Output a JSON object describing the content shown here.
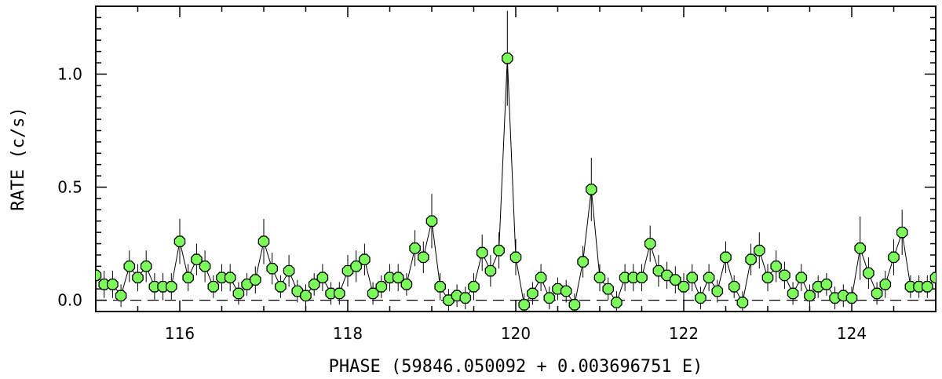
{
  "chart_data": {
    "type": "scatter",
    "xlabel": "PHASE (59846.050092 + 0.003696751 E)",
    "ylabel": "RATE (c/s)",
    "xlim": [
      115,
      125
    ],
    "ylim": [
      -0.05,
      1.3
    ],
    "x_ticks": [
      116,
      118,
      120,
      122,
      124
    ],
    "y_ticks": [
      0.0,
      0.5,
      1.0
    ],
    "x_tick_labels": [
      "116",
      "118",
      "120",
      "122",
      "124"
    ],
    "y_tick_labels": [
      "0.0",
      "0.5",
      "1.0"
    ],
    "reference_line_y": 0.0,
    "grid": false,
    "marker_color": "#7CFC5A",
    "line_color": "#000000",
    "series": [
      {
        "x": [
          115.0,
          115.1,
          115.2,
          115.3,
          115.4,
          115.5,
          115.6,
          115.7,
          115.8,
          115.9,
          116.0,
          116.1,
          116.2,
          116.3,
          116.4,
          116.5,
          116.6,
          116.7,
          116.8,
          116.9,
          117.0,
          117.1,
          117.2,
          117.3,
          117.4,
          117.5,
          117.6,
          117.7,
          117.8,
          117.9,
          118.0,
          118.1,
          118.2,
          118.3,
          118.4,
          118.5,
          118.6,
          118.7,
          118.8,
          118.9,
          119.0,
          119.1,
          119.2,
          119.3,
          119.4,
          119.5,
          119.6,
          119.7,
          119.8,
          119.9,
          120.0,
          120.1,
          120.2,
          120.3,
          120.4,
          120.5,
          120.6,
          120.7,
          120.8,
          120.9,
          121.0,
          121.1,
          121.2,
          121.3,
          121.4,
          121.5,
          121.6,
          121.7,
          121.8,
          121.9,
          122.0,
          122.1,
          122.2,
          122.3,
          122.4,
          122.5,
          122.6,
          122.7,
          122.8,
          122.9,
          123.0,
          123.1,
          123.2,
          123.3,
          123.4,
          123.5,
          123.6,
          123.7,
          123.8,
          123.9,
          124.0,
          124.1,
          124.2,
          124.3,
          124.4,
          124.5,
          124.6,
          124.7,
          124.8,
          124.9,
          125.0
        ],
        "y": [
          0.11,
          0.07,
          0.07,
          0.02,
          0.15,
          0.1,
          0.15,
          0.06,
          0.06,
          0.06,
          0.26,
          0.1,
          0.18,
          0.15,
          0.06,
          0.1,
          0.1,
          0.03,
          0.07,
          0.09,
          0.26,
          0.14,
          0.06,
          0.13,
          0.04,
          0.02,
          0.07,
          0.1,
          0.03,
          0.03,
          0.13,
          0.15,
          0.18,
          0.03,
          0.06,
          0.1,
          0.1,
          0.07,
          0.23,
          0.19,
          0.35,
          0.06,
          0.0,
          0.02,
          0.01,
          0.06,
          0.21,
          0.13,
          0.22,
          1.07,
          0.19,
          -0.02,
          0.03,
          0.1,
          0.01,
          0.05,
          0.04,
          -0.02,
          0.17,
          0.49,
          0.1,
          0.05,
          -0.01,
          0.1,
          0.1,
          0.1,
          0.25,
          0.13,
          0.11,
          0.09,
          0.06,
          0.1,
          0.01,
          0.1,
          0.04,
          0.19,
          0.06,
          -0.01,
          0.18,
          0.22,
          0.1,
          0.15,
          0.11,
          0.03,
          0.1,
          0.02,
          0.06,
          0.07,
          0.01,
          0.02,
          0.01,
          0.23,
          0.12,
          0.03,
          0.07,
          0.19,
          0.3,
          0.06,
          0.06,
          0.06,
          0.1
        ],
        "err": [
          0.06,
          0.06,
          0.06,
          0.05,
          0.07,
          0.06,
          0.07,
          0.06,
          0.06,
          0.06,
          0.1,
          0.06,
          0.07,
          0.07,
          0.05,
          0.06,
          0.06,
          0.05,
          0.05,
          0.06,
          0.1,
          0.07,
          0.05,
          0.07,
          0.05,
          0.05,
          0.05,
          0.06,
          0.05,
          0.05,
          0.07,
          0.07,
          0.07,
          0.05,
          0.05,
          0.06,
          0.06,
          0.05,
          0.08,
          0.07,
          0.12,
          0.06,
          0.05,
          0.05,
          0.05,
          0.06,
          0.08,
          0.07,
          0.08,
          0.21,
          0.08,
          0.05,
          0.05,
          0.06,
          0.05,
          0.05,
          0.05,
          0.05,
          0.07,
          0.14,
          0.06,
          0.05,
          0.05,
          0.06,
          0.06,
          0.06,
          0.08,
          0.07,
          0.06,
          0.06,
          0.06,
          0.06,
          0.05,
          0.06,
          0.05,
          0.07,
          0.05,
          0.05,
          0.07,
          0.08,
          0.06,
          0.07,
          0.06,
          0.05,
          0.06,
          0.05,
          0.05,
          0.05,
          0.05,
          0.05,
          0.05,
          0.14,
          0.07,
          0.05,
          0.06,
          0.08,
          0.1,
          0.05,
          0.05,
          0.05,
          0.06
        ]
      }
    ]
  }
}
